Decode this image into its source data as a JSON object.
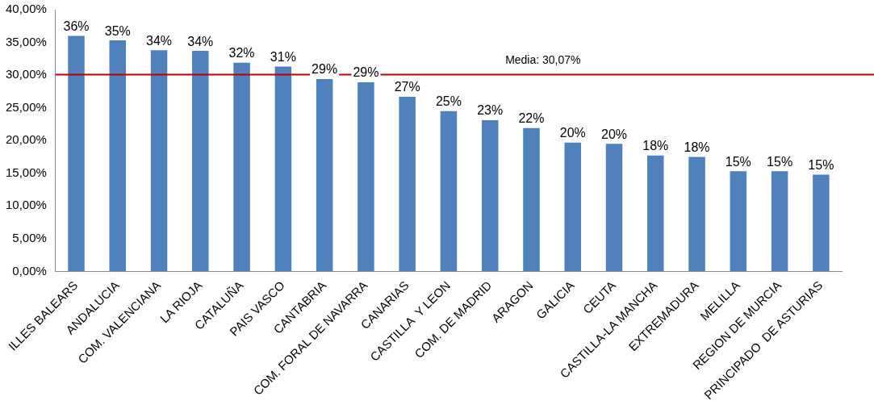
{
  "chart_data": {
    "type": "bar",
    "categories": [
      "ILLES BALEARS",
      "ANDALUCIA",
      "COM. VALENCIANA",
      "LA RIOJA",
      "CATALUÑA",
      "PAIS VASCO",
      "CANTABRIA",
      "COM. FORAL DE NAVARRA",
      "CANARIAS",
      "CASTILLA  Y LEON",
      "COM. DE MADRID",
      "ARAGON",
      "GALICIA",
      "CEUTA",
      "CASTILLA-LA MANCHA",
      "EXTREMADURA",
      "MELILLA",
      "REGION DE MURCIA",
      "PRINCIPADO  DE ASTURIAS"
    ],
    "values": [
      36.0,
      35.3,
      33.8,
      33.7,
      31.9,
      31.3,
      29.4,
      28.9,
      26.7,
      24.5,
      23.1,
      21.9,
      19.7,
      19.5,
      17.7,
      17.5,
      15.3,
      15.3,
      14.8
    ],
    "value_labels": [
      "36%",
      "35%",
      "34%",
      "34%",
      "32%",
      "31%",
      "29%",
      "29%",
      "27%",
      "25%",
      "23%",
      "22%",
      "20%",
      "20%",
      "18%",
      "18%",
      "15%",
      "15%",
      "15%"
    ],
    "color": "#4f81bd",
    "ylim": [
      0,
      40
    ],
    "yticks": [
      {
        "value": 0,
        "label": "0,00%"
      },
      {
        "value": 5,
        "label": "5,00%"
      },
      {
        "value": 10,
        "label": "10,00%"
      },
      {
        "value": 15,
        "label": "15,00%"
      },
      {
        "value": 20,
        "label": "20,00%"
      },
      {
        "value": 25,
        "label": "25,00%"
      },
      {
        "value": 30,
        "label": "30,00%"
      },
      {
        "value": 35,
        "label": "35,00%"
      },
      {
        "value": 40,
        "label": "40,00%"
      }
    ],
    "ref_lines": [
      {
        "axis": "y",
        "value": 30.07,
        "label": "Media: 30,07%",
        "color": "#c00000"
      }
    ],
    "grid": false,
    "legend": false
  }
}
